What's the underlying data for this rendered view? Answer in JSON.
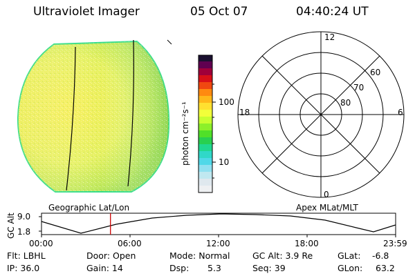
{
  "header": {
    "instrument": "Ultraviolet Imager",
    "date": "05 Oct 07",
    "time": "04:40:24 UT"
  },
  "colorbar": {
    "label": "photon cm⁻²s⁻¹",
    "ticks": [
      "100",
      "10"
    ]
  },
  "polar": {
    "mlt_labels": [
      "12",
      "18",
      "6",
      "0"
    ],
    "lat_labels": [
      "60",
      "70",
      "80"
    ]
  },
  "timeline": {
    "left_title": "Geographic Lat/Lon",
    "right_title": "Apex MLat/MLT",
    "ylabel": "GC Alt",
    "yticks": [
      "9.0",
      "1.8"
    ],
    "xticks": [
      "00:00",
      "06:00",
      "12:00",
      "18:00",
      "23:59"
    ],
    "current_time_hours": 4.673
  },
  "status": {
    "filter": "Flt: LBHL",
    "ip": "IP: 36.0",
    "door": "Door: Open",
    "gain": "Gain: 14",
    "mode": "Mode: Normal",
    "dsp_label": "Dsp:",
    "dsp_value": "5.3",
    "gc_alt": "GC Alt: 3.9 Re",
    "seq": "Seq: 39",
    "glat_label": "GLat:",
    "glat_value": "-6.8",
    "glon_label": "GLon:",
    "glon_value": "63.2"
  },
  "colors": {
    "disk_base": "#d8ee6a",
    "disk_edge": "#33dd88",
    "marker": "#cc0000"
  }
}
